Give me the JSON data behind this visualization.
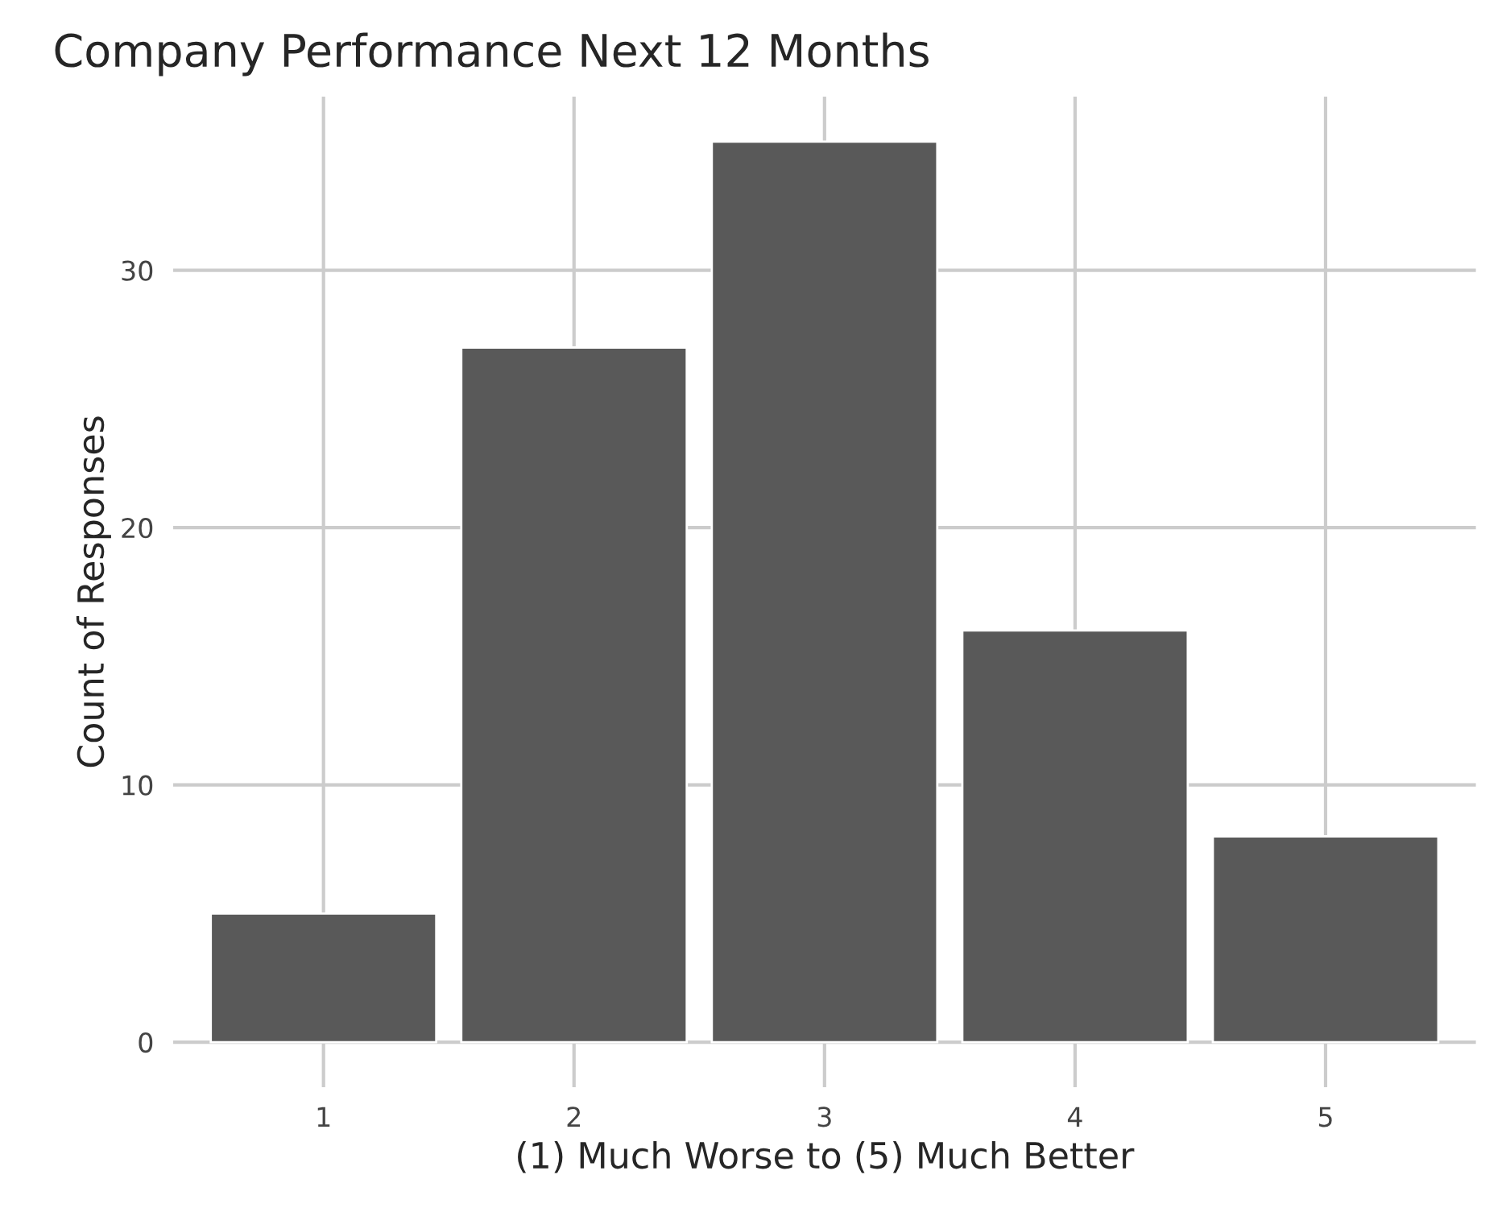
{
  "chart_data": {
    "type": "bar",
    "title": "Company Performance Next 12 Months",
    "xlabel": "(1) Much Worse to (5) Much Better",
    "ylabel": "Count of Responses",
    "categories": [
      "1",
      "2",
      "3",
      "4",
      "5"
    ],
    "values": [
      5,
      27,
      35,
      16,
      8
    ],
    "color": "#595959",
    "ylim": [
      -1.75,
      36.75
    ],
    "yticks": [
      0,
      10,
      20,
      30
    ],
    "grid": true
  }
}
